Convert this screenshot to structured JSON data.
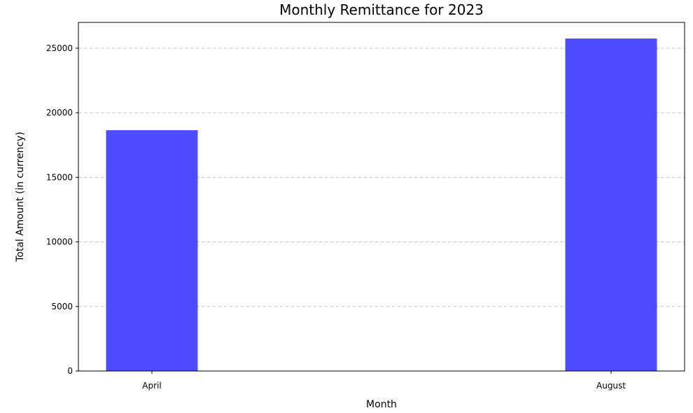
{
  "chart_data": {
    "type": "bar",
    "title": "Monthly Remittance for 2023",
    "xlabel": "Month",
    "ylabel": "Total Amount (in currency)",
    "categories": [
      "April",
      "August"
    ],
    "values": [
      18650,
      25750
    ],
    "ylim": [
      0,
      27000
    ],
    "yticks": [
      0,
      5000,
      10000,
      15000,
      20000,
      25000
    ],
    "grid": "y, dashed",
    "bar_color": "#4d4dff",
    "grid_color": "#c8c8c8"
  }
}
